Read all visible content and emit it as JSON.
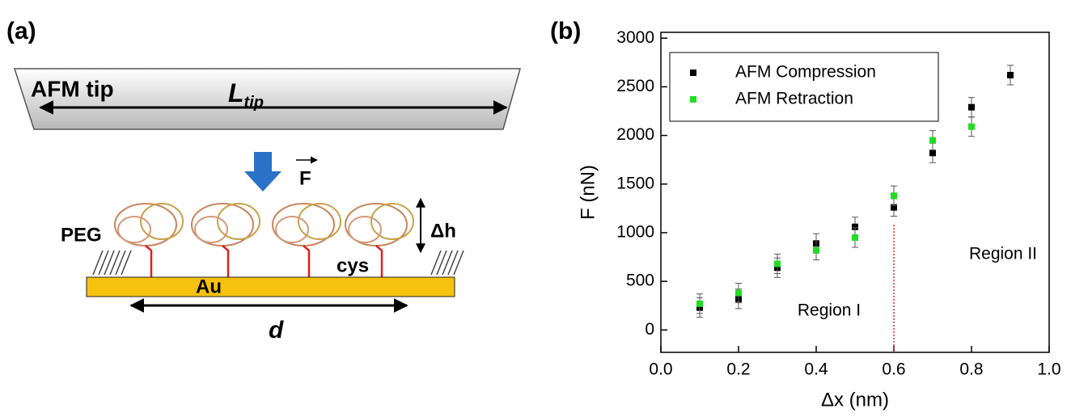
{
  "panel_a": {
    "label": "(a)",
    "tip": "AFM tip",
    "length": "L",
    "length_sub": "tip",
    "force": "F",
    "height": "Δh",
    "peg": "PEG",
    "cys": "cys",
    "gold": "Au",
    "distance": "d"
  },
  "chart_data": {
    "type": "scatter",
    "panel_label": "(b)",
    "x_label": "Δx (nm)",
    "y_label": "F (nN)",
    "x": [
      0.1,
      0.2,
      0.3,
      0.4,
      0.5,
      0.6,
      0.7,
      0.8,
      0.9
    ],
    "series": [
      {
        "name": "AFM Compression",
        "color": "#000000",
        "values": [
          230,
          320,
          640,
          890,
          1060,
          1260,
          1820,
          2290,
          2620
        ],
        "errors": [
          100,
          100,
          100,
          100,
          100,
          90,
          100,
          100,
          100
        ]
      },
      {
        "name": "AFM Retraction",
        "color": "#22dd22",
        "values": [
          270,
          380,
          680,
          820,
          950,
          1380,
          1950,
          2090,
          null
        ],
        "errors": [
          100,
          100,
          100,
          100,
          100,
          100,
          100,
          100,
          null
        ]
      }
    ],
    "vline": {
      "x": 0.6,
      "top": 1100,
      "color": "#ee2222"
    },
    "annotations": [
      "Region I",
      "Region II"
    ],
    "xlim": [
      0,
      1
    ],
    "ylim": [
      -230,
      3060
    ],
    "xticks": [
      {
        "value": 0,
        "label": "0.0"
      },
      0.2,
      0.4,
      0.6,
      0.8,
      {
        "value": 1,
        "label": "1.0"
      }
    ],
    "yticks": [
      0,
      500,
      1000,
      1500,
      2000,
      2500,
      3000
    ],
    "legend": "upper left"
  }
}
